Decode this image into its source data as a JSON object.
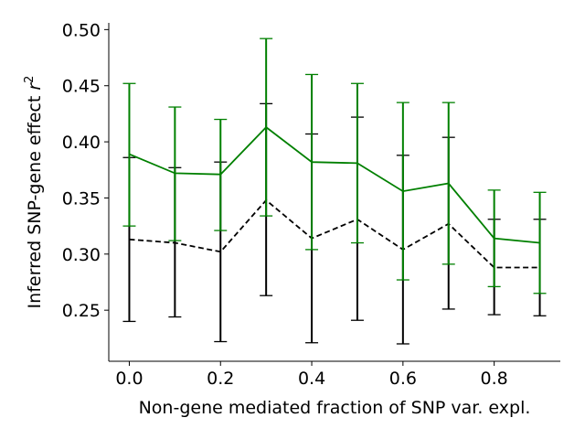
{
  "chart_data": {
    "type": "line",
    "title": "",
    "xlabel": "Non-gene mediated fraction of SNP var. expl.",
    "ylabel_text": "Inferred SNP-gene effect ",
    "ylabel_symbol": "r",
    "ylabel_exponent": "2",
    "xlim": [
      -0.045,
      0.945
    ],
    "ylim": [
      0.2045,
      0.506
    ],
    "x_ticks": [
      0.0,
      0.2,
      0.4,
      0.6,
      0.8
    ],
    "x_tick_labels": [
      "0.0",
      "0.2",
      "0.4",
      "0.6",
      "0.8"
    ],
    "y_ticks": [
      0.25,
      0.3,
      0.35,
      0.4,
      0.45,
      0.5
    ],
    "y_tick_labels": [
      "0.25",
      "0.30",
      "0.35",
      "0.40",
      "0.45",
      "0.50"
    ],
    "grid": false,
    "legend": "none",
    "x": [
      0.0,
      0.1,
      0.2,
      0.3,
      0.4,
      0.5,
      0.6,
      0.7,
      0.8,
      0.9
    ],
    "series": [
      {
        "color": "#000000",
        "line_style": "dashed",
        "values": [
          0.313,
          0.31,
          0.302,
          0.348,
          0.314,
          0.331,
          0.304,
          0.327,
          0.288,
          0.288
        ],
        "err_lower": [
          0.24,
          0.244,
          0.222,
          0.263,
          0.221,
          0.241,
          0.22,
          0.251,
          0.246,
          0.245
        ],
        "err_upper": [
          0.386,
          0.377,
          0.382,
          0.434,
          0.407,
          0.422,
          0.388,
          0.404,
          0.331,
          0.331
        ]
      },
      {
        "color": "#008000",
        "line_style": "solid",
        "values": [
          0.389,
          0.372,
          0.371,
          0.413,
          0.382,
          0.381,
          0.356,
          0.363,
          0.314,
          0.31
        ],
        "err_lower": [
          0.325,
          0.312,
          0.321,
          0.334,
          0.304,
          0.31,
          0.277,
          0.291,
          0.271,
          0.265
        ],
        "err_upper": [
          0.452,
          0.431,
          0.42,
          0.492,
          0.46,
          0.452,
          0.435,
          0.435,
          0.357,
          0.355
        ]
      }
    ]
  }
}
